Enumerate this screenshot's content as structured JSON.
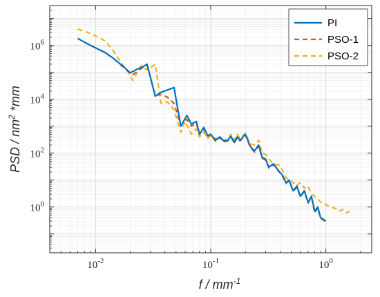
{
  "chart_data": {
    "type": "line",
    "title": "",
    "xlabel": {
      "base": "f / mm",
      "sup": "-1"
    },
    "ylabel": {
      "pre": "PSD / nm",
      "sup": "2",
      "post": " *mm"
    },
    "xscale": "log",
    "yscale": "log",
    "xlim": [
      0.004,
      2.5
    ],
    "ylim": [
      0.02,
      30000000
    ],
    "grid": true,
    "legend_position": "top-right",
    "x_ticks": [
      {
        "value": 0.01,
        "base": "10",
        "exp": "-2"
      },
      {
        "value": 0.1,
        "base": "10",
        "exp": "-1"
      },
      {
        "value": 1,
        "base": "10",
        "exp": "0"
      }
    ],
    "y_ticks": [
      {
        "value": 1,
        "base": "10",
        "exp": "0"
      },
      {
        "value": 100,
        "base": "10",
        "exp": "2"
      },
      {
        "value": 10000,
        "base": "10",
        "exp": "4"
      },
      {
        "value": 1000000,
        "base": "10",
        "exp": "6"
      }
    ],
    "series": [
      {
        "name": "PI",
        "color": "#0072BD",
        "dash": "solid",
        "x": [
          0.007,
          0.009,
          0.012,
          0.014,
          0.017,
          0.02,
          0.023,
          0.025,
          0.028,
          0.033,
          0.037,
          0.042,
          0.048,
          0.055,
          0.062,
          0.068,
          0.075,
          0.08,
          0.087,
          0.094,
          0.1,
          0.11,
          0.12,
          0.13,
          0.14,
          0.15,
          0.16,
          0.17,
          0.18,
          0.2,
          0.22,
          0.24,
          0.26,
          0.28,
          0.3,
          0.32,
          0.35,
          0.38,
          0.42,
          0.45,
          0.48,
          0.52,
          0.56,
          0.6,
          0.65,
          0.7,
          0.75,
          0.8,
          0.85,
          0.9,
          0.95,
          1.0
        ],
        "y": [
          1800000,
          1000000,
          550000,
          350000,
          180000,
          95000,
          130000,
          150000,
          200000,
          13000,
          18000,
          22000,
          27000,
          1000,
          2500,
          1200,
          1500,
          500,
          900,
          450,
          500,
          300,
          400,
          280,
          300,
          420,
          250,
          400,
          300,
          500,
          180,
          120,
          200,
          70,
          60,
          30,
          40,
          25,
          15,
          8,
          10,
          4,
          6,
          2.5,
          4,
          1.5,
          2.5,
          0.7,
          1.0,
          0.4,
          0.35,
          0.3
        ]
      },
      {
        "name": "PSO-1",
        "color": "#D95319",
        "dash": "7,5",
        "x": [
          0.007,
          0.009,
          0.012,
          0.014,
          0.017,
          0.02,
          0.021,
          0.025,
          0.028,
          0.033,
          0.037,
          0.042,
          0.048,
          0.055,
          0.062,
          0.068,
          0.075,
          0.08,
          0.087,
          0.094,
          0.1,
          0.11,
          0.12,
          0.13,
          0.14,
          0.15,
          0.16,
          0.17,
          0.18,
          0.2,
          0.22,
          0.24,
          0.26,
          0.28,
          0.3,
          0.32,
          0.35,
          0.38,
          0.42,
          0.45,
          0.48,
          0.52,
          0.56,
          0.6,
          0.65,
          0.7,
          0.75,
          0.8,
          0.85,
          0.9,
          0.95,
          1.0
        ],
        "y": [
          1800000,
          1000000,
          550000,
          350000,
          170000,
          90000,
          80000,
          140000,
          180000,
          14000,
          15000,
          12000,
          7000,
          1100,
          1800,
          1000,
          1300,
          500,
          800,
          420,
          480,
          280,
          380,
          260,
          280,
          400,
          240,
          380,
          280,
          480,
          170,
          110,
          190,
          65,
          55,
          28,
          38,
          24,
          14,
          7.5,
          9.5,
          3.8,
          5.5,
          2.4,
          3.8,
          1.4,
          2.3,
          0.6,
          0.95,
          0.38,
          0.33,
          0.28
        ]
      },
      {
        "name": "PSO-2",
        "color": "#EDB120",
        "dash": "7,5",
        "x": [
          0.007,
          0.009,
          0.012,
          0.014,
          0.017,
          0.02,
          0.021,
          0.025,
          0.028,
          0.033,
          0.037,
          0.042,
          0.048,
          0.055,
          0.06,
          0.068,
          0.075,
          0.08,
          0.087,
          0.094,
          0.1,
          0.11,
          0.12,
          0.13,
          0.14,
          0.15,
          0.16,
          0.17,
          0.18,
          0.2,
          0.22,
          0.24,
          0.26,
          0.28,
          0.3,
          0.32,
          0.35,
          0.4,
          0.45,
          0.5,
          0.55,
          0.6,
          0.65,
          0.7,
          0.75,
          0.8,
          0.85,
          0.9,
          0.95,
          1.0,
          1.1,
          1.2,
          1.3,
          1.4,
          1.5,
          1.6
        ],
        "y": [
          4000000,
          2800000,
          1500000,
          700000,
          200000,
          80000,
          50000,
          180000,
          120000,
          200000,
          7000,
          8000,
          4000,
          600,
          1500,
          500,
          800,
          400,
          600,
          350,
          450,
          350,
          350,
          300,
          350,
          500,
          300,
          500,
          350,
          550,
          220,
          200,
          300,
          100,
          90,
          60,
          40,
          35,
          12,
          10,
          6,
          8,
          5,
          6,
          3,
          2.5,
          2,
          1.5,
          1.5,
          1.2,
          1.0,
          0.9,
          0.7,
          0.8,
          0.6,
          0.7
        ]
      }
    ]
  }
}
